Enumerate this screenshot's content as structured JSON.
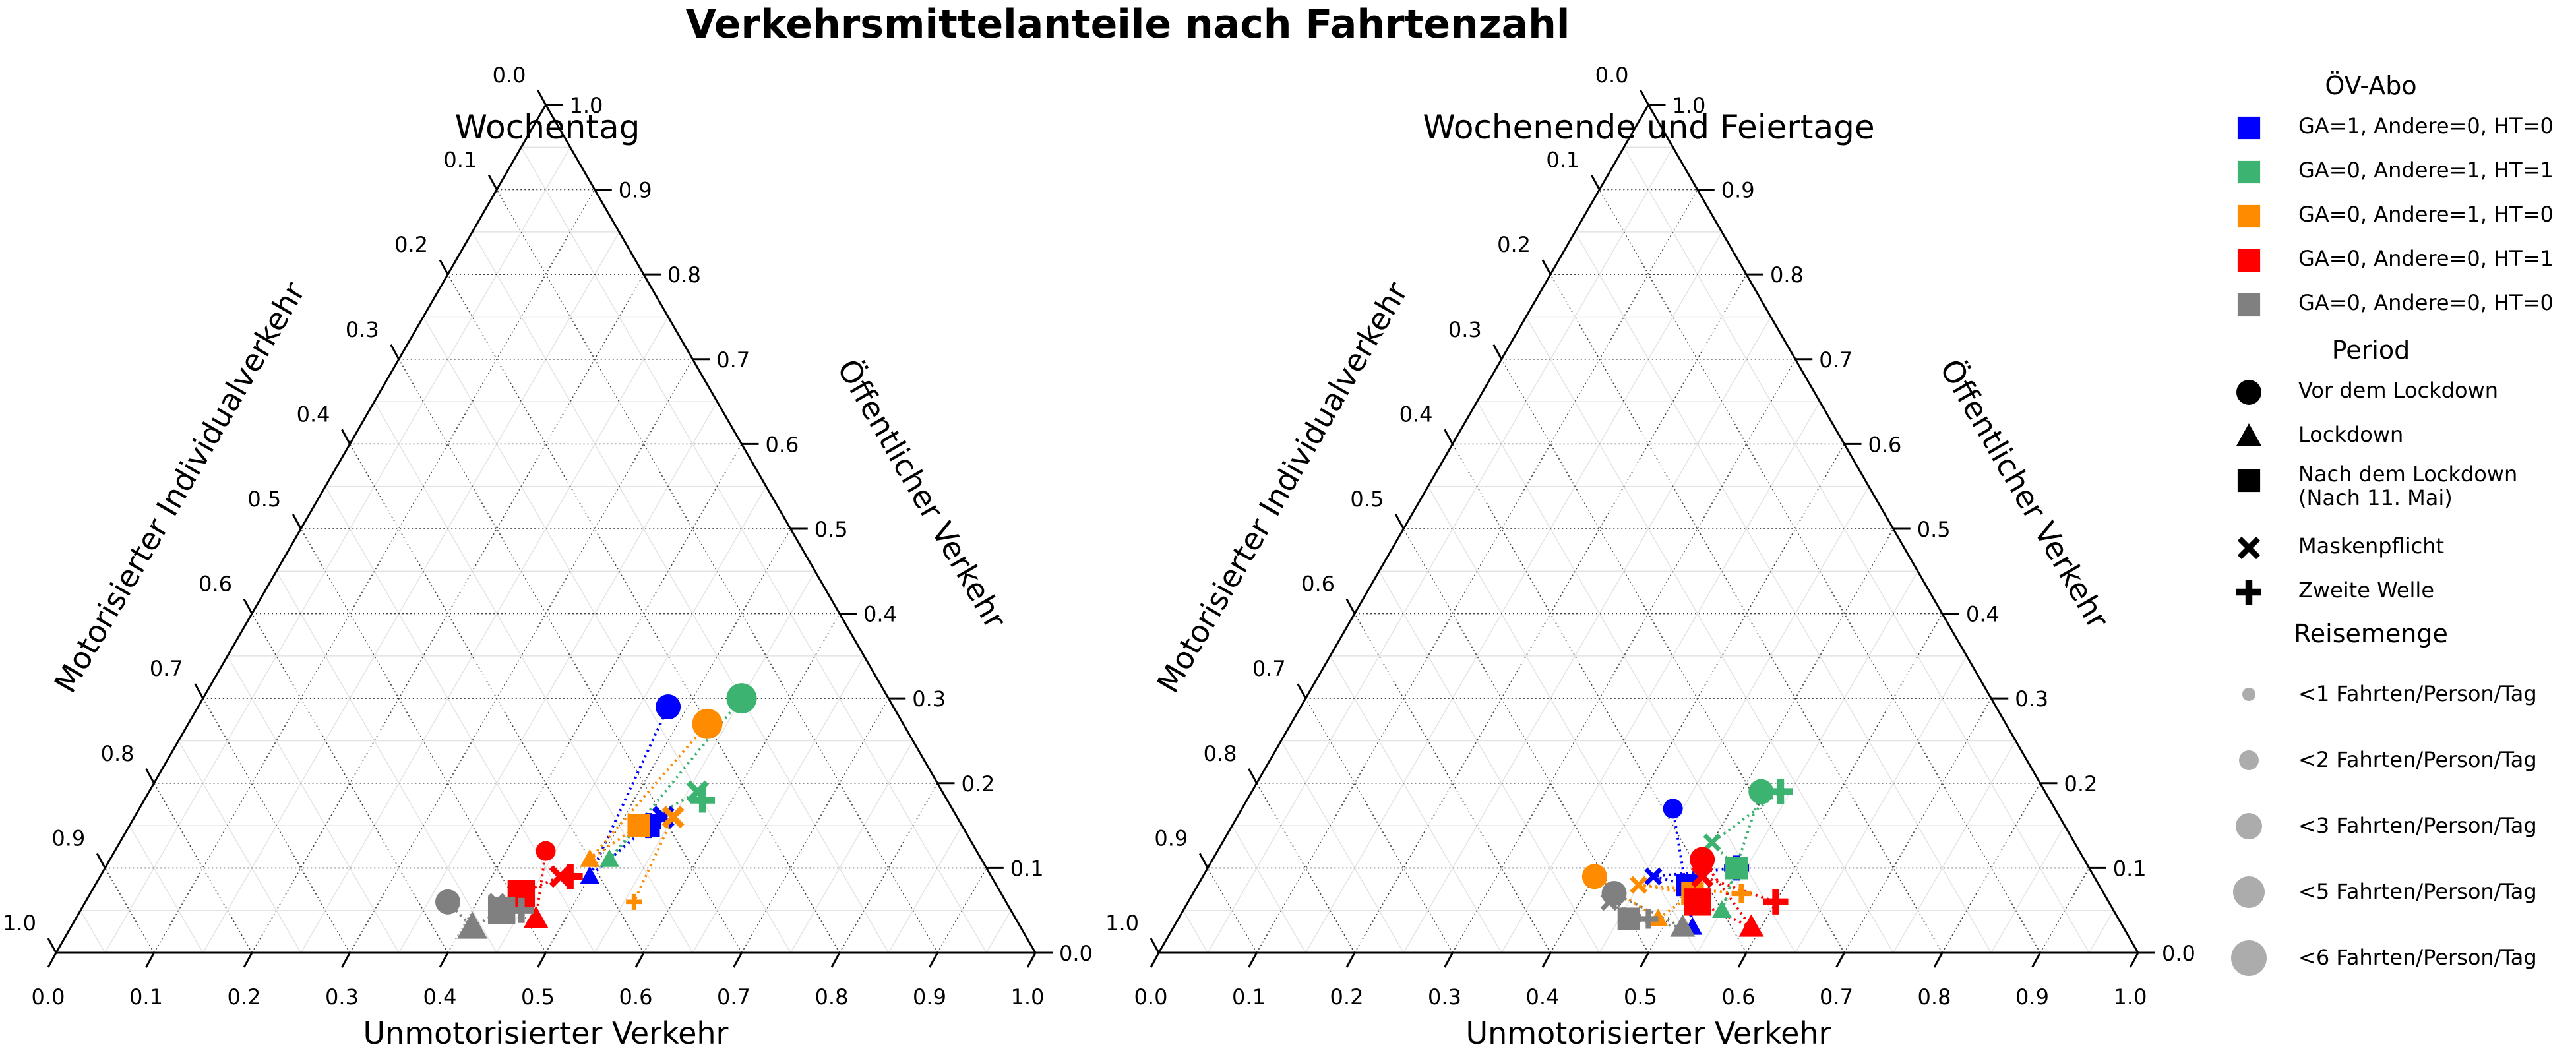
{
  "title": "Verkehrsmittelanteile nach Fahrtenzahl",
  "axes": {
    "bottom_label": "Unmotorisierter Verkehr",
    "left_label": "Motorisierter Individualverkehr",
    "right_label": "Öffentlicher Verkehr",
    "ticks": [
      "0.0",
      "0.1",
      "0.2",
      "0.3",
      "0.4",
      "0.5",
      "0.6",
      "0.7",
      "0.8",
      "0.9",
      "1.0"
    ]
  },
  "legend": {
    "abo_title": "ÖV-Abo",
    "abo_items": [
      {
        "label": "GA=1, Andere=0, HT=0",
        "color": "#0000ff"
      },
      {
        "label": "GA=0, Andere=1, HT=1",
        "color": "#3cb371"
      },
      {
        "label": "GA=0, Andere=1, HT=0",
        "color": "#ff8c00"
      },
      {
        "label": "GA=0, Andere=0, HT=1",
        "color": "#ff0000"
      },
      {
        "label": "GA=0, Andere=0, HT=0",
        "color": "#808080"
      }
    ],
    "period_title": "Period",
    "period_items": [
      {
        "label": "Vor dem Lockdown",
        "marker": "circle"
      },
      {
        "label": "Lockdown",
        "marker": "triangle"
      },
      {
        "label": "Nach dem Lockdown\n(Nach 11. Mai)",
        "marker": "square"
      },
      {
        "label": "Maskenpflicht",
        "marker": "x"
      },
      {
        "label": "Zweite Welle",
        "marker": "plus"
      }
    ],
    "size_title": "Reisemenge",
    "size_items": [
      {
        "label": "<1 Fahrten/Person/Tag",
        "trips": 1
      },
      {
        "label": "<2 Fahrten/Person/Tag",
        "trips": 2
      },
      {
        "label": "<3 Fahrten/Person/Tag",
        "trips": 3
      },
      {
        "label": "<5 Fahrten/Person/Tag",
        "trips": 5
      },
      {
        "label": "<6 Fahrten/Person/Tag",
        "trips": 6
      }
    ]
  },
  "chart_data": [
    {
      "type": "scatter",
      "subtype": "ternary",
      "title": "Wochentag",
      "grid": true,
      "components": [
        "Unmotorisierter Verkehr",
        "Öffentlicher Verkehr",
        "Motorisierter Individualverkehr"
      ],
      "series": [
        {
          "name": "GA=1, Andere=0, HT=0",
          "color": "#0000ff",
          "points": [
            {
              "period": "Vor dem Lockdown",
              "u": 0.48,
              "o": 0.29,
              "trips": 3
            },
            {
              "period": "Lockdown",
              "u": 0.5,
              "o": 0.09,
              "trips": 2
            },
            {
              "period": "Nach dem Lockdown",
              "u": 0.53,
              "o": 0.15,
              "trips": 3
            },
            {
              "period": "Maskenpflicht",
              "u": 0.54,
              "o": 0.16,
              "trips": 3
            },
            {
              "period": "Zweite Welle",
              "u": 0.53,
              "o": 0.15,
              "trips": 3
            }
          ]
        },
        {
          "name": "GA=0, Andere=1, HT=1",
          "color": "#3cb371",
          "points": [
            {
              "period": "Vor dem Lockdown",
              "u": 0.55,
              "o": 0.3,
              "trips": 5
            },
            {
              "period": "Lockdown",
              "u": 0.51,
              "o": 0.11,
              "trips": 2
            },
            {
              "period": "Nach dem Lockdown",
              "u": 0.52,
              "o": 0.15,
              "trips": 3
            },
            {
              "period": "Maskenpflicht",
              "u": 0.56,
              "o": 0.19,
              "trips": 3
            },
            {
              "period": "Zweite Welle",
              "u": 0.57,
              "o": 0.18,
              "trips": 3
            }
          ]
        },
        {
          "name": "GA=0, Andere=1, HT=0",
          "color": "#ff8c00",
          "points": [
            {
              "period": "Vor dem Lockdown",
              "u": 0.53,
              "o": 0.27,
              "trips": 5
            },
            {
              "period": "Lockdown",
              "u": 0.49,
              "o": 0.11,
              "trips": 2
            },
            {
              "period": "Nach dem Lockdown",
              "u": 0.52,
              "o": 0.15,
              "trips": 3
            },
            {
              "period": "Maskenpflicht",
              "u": 0.55,
              "o": 0.16,
              "trips": 3
            },
            {
              "period": "Zweite Welle",
              "u": 0.56,
              "o": 0.06,
              "trips": 1
            }
          ]
        },
        {
          "name": "GA=0, Andere=0, HT=1",
          "color": "#ff0000",
          "points": [
            {
              "period": "Vor dem Lockdown",
              "u": 0.44,
              "o": 0.12,
              "trips": 2
            },
            {
              "period": "Lockdown",
              "u": 0.47,
              "o": 0.04,
              "trips": 3
            },
            {
              "period": "Nach dem Lockdown",
              "u": 0.44,
              "o": 0.07,
              "trips": 5
            },
            {
              "period": "Maskenpflicht",
              "u": 0.47,
              "o": 0.09,
              "trips": 3
            },
            {
              "period": "Zweite Welle",
              "u": 0.48,
              "o": 0.09,
              "trips": 3
            }
          ]
        },
        {
          "name": "GA=0, Andere=0, HT=0",
          "color": "#808080",
          "points": [
            {
              "period": "Vor dem Lockdown",
              "u": 0.37,
              "o": 0.06,
              "trips": 3
            },
            {
              "period": "Lockdown",
              "u": 0.41,
              "o": 0.03,
              "trips": 5
            },
            {
              "period": "Nach dem Lockdown",
              "u": 0.43,
              "o": 0.05,
              "trips": 5
            },
            {
              "period": "Maskenpflicht",
              "u": 0.42,
              "o": 0.06,
              "trips": 2
            },
            {
              "period": "Zweite Welle",
              "u": 0.45,
              "o": 0.05,
              "trips": 3
            }
          ]
        }
      ]
    },
    {
      "type": "scatter",
      "subtype": "ternary",
      "title": "Wochenende und Feiertage",
      "grid": true,
      "components": [
        "Unmotorisierter Verkehr",
        "Öffentlicher Verkehr",
        "Motorisierter Individualverkehr"
      ],
      "series": [
        {
          "name": "GA=1, Andere=0, HT=0",
          "color": "#0000ff",
          "points": [
            {
              "period": "Vor dem Lockdown",
              "u": 0.44,
              "o": 0.17,
              "trips": 2
            },
            {
              "period": "Lockdown",
              "u": 0.53,
              "o": 0.03,
              "trips": 2
            },
            {
              "period": "Nach dem Lockdown",
              "u": 0.5,
              "o": 0.08,
              "trips": 3
            },
            {
              "period": "Maskenpflicht",
              "u": 0.46,
              "o": 0.09,
              "trips": 2
            },
            {
              "period": "Zweite Welle",
              "u": 0.54,
              "o": 0.1,
              "trips": 3
            }
          ]
        },
        {
          "name": "GA=0, Andere=1, HT=1",
          "color": "#3cb371",
          "points": [
            {
              "period": "Vor dem Lockdown",
              "u": 0.52,
              "o": 0.19,
              "trips": 3
            },
            {
              "period": "Lockdown",
              "u": 0.55,
              "o": 0.05,
              "trips": 2
            },
            {
              "period": "Nach dem Lockdown",
              "u": 0.54,
              "o": 0.1,
              "trips": 3
            },
            {
              "period": "Maskenpflicht",
              "u": 0.5,
              "o": 0.13,
              "trips": 2
            },
            {
              "period": "Zweite Welle",
              "u": 0.54,
              "o": 0.19,
              "trips": 3
            }
          ]
        },
        {
          "name": "GA=0, Andere=1, HT=0",
          "color": "#ff8c00",
          "points": [
            {
              "period": "Vor dem Lockdown",
              "u": 0.4,
              "o": 0.09,
              "trips": 3
            },
            {
              "period": "Lockdown",
              "u": 0.49,
              "o": 0.04,
              "trips": 2
            },
            {
              "period": "Nach dem Lockdown",
              "u": 0.51,
              "o": 0.07,
              "trips": 3
            },
            {
              "period": "Maskenpflicht",
              "u": 0.45,
              "o": 0.08,
              "trips": 2
            },
            {
              "period": "Zweite Welle",
              "u": 0.56,
              "o": 0.07,
              "trips": 2
            }
          ]
        },
        {
          "name": "GA=0, Andere=0, HT=1",
          "color": "#ff0000",
          "points": [
            {
              "period": "Vor dem Lockdown",
              "u": 0.5,
              "o": 0.11,
              "trips": 3
            },
            {
              "period": "Lockdown",
              "u": 0.59,
              "o": 0.03,
              "trips": 3
            },
            {
              "period": "Nach dem Lockdown",
              "u": 0.52,
              "o": 0.06,
              "trips": 5
            },
            {
              "period": "Maskenpflicht",
              "u": 0.51,
              "o": 0.09,
              "trips": 3
            },
            {
              "period": "Zweite Welle",
              "u": 0.6,
              "o": 0.06,
              "trips": 3
            }
          ]
        },
        {
          "name": "GA=0, Andere=0, HT=0",
          "color": "#808080",
          "points": [
            {
              "period": "Vor dem Lockdown",
              "u": 0.43,
              "o": 0.07,
              "trips": 3
            },
            {
              "period": "Lockdown",
              "u": 0.52,
              "o": 0.03,
              "trips": 3
            },
            {
              "period": "Nach dem Lockdown",
              "u": 0.46,
              "o": 0.04,
              "trips": 3
            },
            {
              "period": "Maskenpflicht",
              "u": 0.43,
              "o": 0.06,
              "trips": 2
            },
            {
              "period": "Zweite Welle",
              "u": 0.48,
              "o": 0.04,
              "trips": 2
            }
          ]
        }
      ]
    }
  ]
}
